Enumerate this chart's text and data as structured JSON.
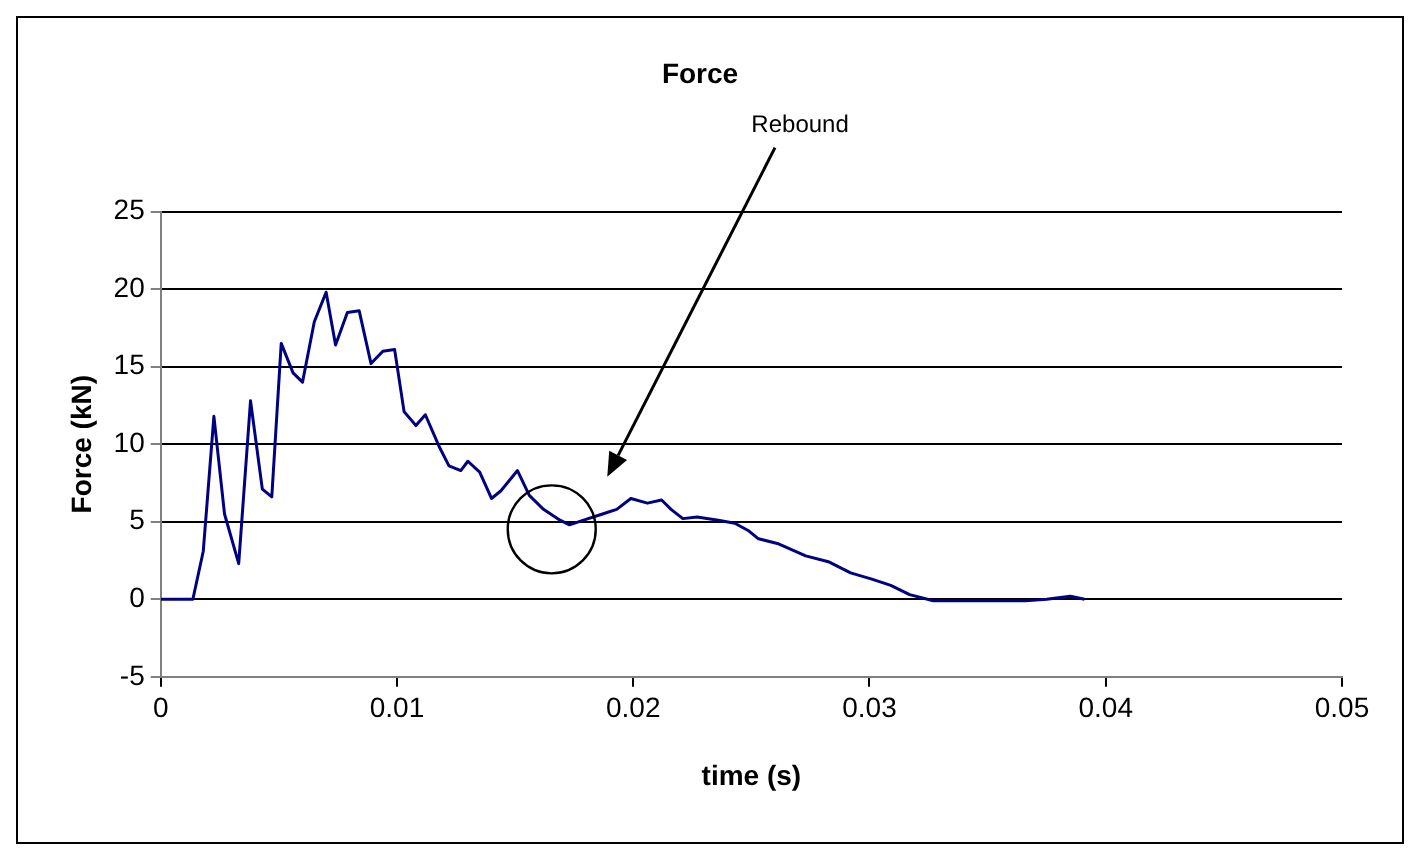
{
  "chart_data": {
    "type": "line",
    "title": "Force",
    "xlabel": "time (s)",
    "ylabel": "Force (kN)",
    "x": [
      0,
      0.00136,
      0.0018,
      0.00225,
      0.0027,
      0.0033,
      0.0038,
      0.0043,
      0.0047,
      0.0051,
      0.0056,
      0.006,
      0.0065,
      0.007,
      0.0074,
      0.0079,
      0.0084,
      0.0089,
      0.0094,
      0.0099,
      0.0103,
      0.0108,
      0.0112,
      0.0118,
      0.0122,
      0.0127,
      0.013,
      0.0135,
      0.014,
      0.0144,
      0.0151,
      0.0156,
      0.0162,
      0.0169,
      0.0173,
      0.0179,
      0.0187,
      0.0193,
      0.0199,
      0.0206,
      0.0212,
      0.0216,
      0.0221,
      0.0227,
      0.0236,
      0.0243,
      0.0249,
      0.0253,
      0.0261,
      0.0273,
      0.0283,
      0.0292,
      0.0301,
      0.0309,
      0.0317,
      0.0327,
      0.0344,
      0.0366,
      0.0375,
      0.0385,
      0.0391
    ],
    "series": [
      {
        "color": "#000080",
        "values": [
          0,
          0,
          3.1,
          11.8,
          5.5,
          2.3,
          12.8,
          7.1,
          6.6,
          16.5,
          14.6,
          14,
          17.9,
          19.8,
          16.4,
          18.5,
          18.6,
          15.2,
          16,
          16.1,
          12.1,
          11.2,
          11.9,
          9.8,
          8.6,
          8.3,
          8.9,
          8.2,
          6.5,
          7,
          8.3,
          6.7,
          5.8,
          5.1,
          4.8,
          5.1,
          5.5,
          5.8,
          6.5,
          6.2,
          6.4,
          5.8,
          5.2,
          5.3,
          5.1,
          4.9,
          4.4,
          3.9,
          3.6,
          2.8,
          2.4,
          1.7,
          1.3,
          0.9,
          0.3,
          -0.1,
          -0.1,
          -0.1,
          0,
          0.2,
          0
        ]
      }
    ],
    "xlim": [
      0,
      0.05
    ],
    "xticks": [
      0,
      0.01,
      0.02,
      0.03,
      0.04,
      0.05
    ],
    "ylim": [
      -5,
      25
    ],
    "yticks": [
      -5,
      0,
      5,
      10,
      15,
      20,
      25
    ],
    "grid": "y",
    "legend": false,
    "marker": "none",
    "line_style": "solid",
    "annotations": [
      "Rebound"
    ]
  }
}
